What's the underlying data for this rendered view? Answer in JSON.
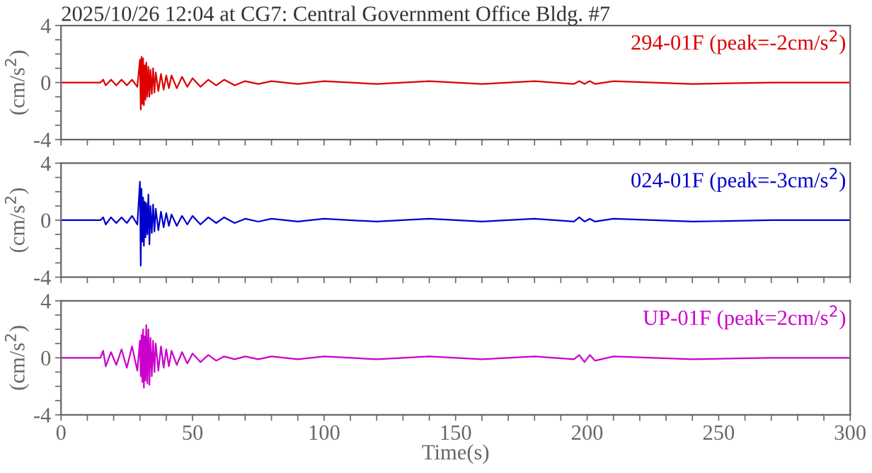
{
  "chart_data": [
    {
      "type": "line",
      "title": "2025/10/26 12:04 at CG7: Central Government Office Bldg. #7",
      "ylabel": "(cm/s$^{2}$)",
      "tick_labels": "y",
      "xlim": [
        0,
        300
      ],
      "ylim": [
        -4,
        4
      ],
      "xticks": [
        0,
        {
          "value": 10,
          "label": null
        },
        {
          "value": 20,
          "label": null
        },
        {
          "value": 30,
          "label": null
        },
        {
          "value": 40,
          "label": null
        },
        50,
        {
          "value": 60,
          "label": null
        },
        {
          "value": 70,
          "label": null
        },
        {
          "value": 80,
          "label": null
        },
        {
          "value": 90,
          "label": null
        },
        100,
        {
          "value": 110,
          "label": null
        },
        {
          "value": 120,
          "label": null
        },
        {
          "value": 130,
          "label": null
        },
        {
          "value": 140,
          "label": null
        },
        150,
        {
          "value": 160,
          "label": null
        },
        {
          "value": 170,
          "label": null
        },
        {
          "value": 180,
          "label": null
        },
        {
          "value": 190,
          "label": null
        },
        200,
        {
          "value": 210,
          "label": null
        },
        {
          "value": 220,
          "label": null
        },
        {
          "value": 230,
          "label": null
        },
        {
          "value": 240,
          "label": null
        },
        250,
        {
          "value": 260,
          "label": null
        },
        {
          "value": 270,
          "label": null
        },
        {
          "value": 280,
          "label": null
        },
        {
          "value": 290,
          "label": null
        },
        300
      ],
      "yticks": [
        -4,
        {
          "value": -3,
          "label": null
        },
        {
          "value": -2,
          "label": null
        },
        {
          "value": -1,
          "label": null
        },
        0,
        {
          "value": 1,
          "label": null
        },
        {
          "value": 2,
          "label": null
        },
        {
          "value": 3,
          "label": null
        },
        4
      ],
      "x": [
        0,
        15,
        16,
        17,
        19,
        21,
        23,
        25,
        27,
        29,
        30,
        30.3,
        30.6,
        30.9,
        31.2,
        31.5,
        31.8,
        32.1,
        32.4,
        32.8,
        33.2,
        33.6,
        34,
        34.5,
        35,
        35.5,
        36,
        37,
        38,
        39,
        40,
        41,
        42,
        44,
        46,
        48,
        50,
        53,
        56,
        59,
        62,
        66,
        70,
        75,
        80,
        90,
        100,
        120,
        140,
        160,
        180,
        195,
        197,
        199,
        201,
        203,
        210,
        240,
        270,
        300
      ],
      "series": [
        {
          "name": "294-01F (peak=-2cm/s$^{2}$)",
          "color": "#dd0000",
          "values": [
            0,
            0,
            0.2,
            -0.2,
            0.2,
            -0.2,
            0.2,
            -0.2,
            0.2,
            -0.3,
            1.6,
            -1.9,
            1.8,
            -1.5,
            1.7,
            -1.6,
            1.2,
            -1.2,
            1.4,
            -1.0,
            1.1,
            -1.0,
            0.9,
            -0.8,
            1.0,
            -0.7,
            0.7,
            -0.6,
            0.6,
            -0.5,
            0.5,
            -0.4,
            0.5,
            -0.4,
            0.4,
            -0.3,
            0.3,
            -0.3,
            0.2,
            -0.2,
            0.2,
            -0.2,
            0.1,
            -0.1,
            0.1,
            -0.1,
            0.1,
            -0.1,
            0.1,
            -0.1,
            0.1,
            -0.1,
            0.1,
            -0.1,
            0.1,
            -0.1,
            0.1,
            -0.1,
            0,
            0
          ]
        }
      ]
    },
    {
      "type": "line",
      "ylabel": "(cm/s$^{2}$)",
      "tick_labels": "y",
      "xlim": [
        0,
        300
      ],
      "ylim": [
        -4,
        4
      ],
      "xticks": [
        0,
        {
          "value": 10,
          "label": null
        },
        {
          "value": 20,
          "label": null
        },
        {
          "value": 30,
          "label": null
        },
        {
          "value": 40,
          "label": null
        },
        50,
        {
          "value": 60,
          "label": null
        },
        {
          "value": 70,
          "label": null
        },
        {
          "value": 80,
          "label": null
        },
        {
          "value": 90,
          "label": null
        },
        100,
        {
          "value": 110,
          "label": null
        },
        {
          "value": 120,
          "label": null
        },
        {
          "value": 130,
          "label": null
        },
        {
          "value": 140,
          "label": null
        },
        150,
        {
          "value": 160,
          "label": null
        },
        {
          "value": 170,
          "label": null
        },
        {
          "value": 180,
          "label": null
        },
        {
          "value": 190,
          "label": null
        },
        200,
        {
          "value": 210,
          "label": null
        },
        {
          "value": 220,
          "label": null
        },
        {
          "value": 230,
          "label": null
        },
        {
          "value": 240,
          "label": null
        },
        250,
        {
          "value": 260,
          "label": null
        },
        {
          "value": 270,
          "label": null
        },
        {
          "value": 280,
          "label": null
        },
        {
          "value": 290,
          "label": null
        },
        300
      ],
      "yticks": [
        -4,
        {
          "value": -3,
          "label": null
        },
        {
          "value": -2,
          "label": null
        },
        {
          "value": -1,
          "label": null
        },
        0,
        {
          "value": 1,
          "label": null
        },
        {
          "value": 2,
          "label": null
        },
        {
          "value": 3,
          "label": null
        },
        4
      ],
      "x": [
        0,
        15,
        16,
        17,
        19,
        21,
        23,
        25,
        27,
        29,
        30,
        30.3,
        30.6,
        30.9,
        31.2,
        31.5,
        31.8,
        32.1,
        32.4,
        32.8,
        33.2,
        33.6,
        34,
        34.5,
        35,
        35.5,
        36,
        37,
        38,
        39,
        40,
        41,
        42,
        44,
        46,
        48,
        50,
        53,
        56,
        59,
        62,
        66,
        70,
        75,
        80,
        90,
        100,
        120,
        140,
        160,
        180,
        195,
        197,
        199,
        201,
        203,
        210,
        240,
        270,
        300
      ],
      "series": [
        {
          "name": "024-01F (peak=-3cm/s$^{2}$)",
          "color": "#0000cc",
          "values": [
            0,
            0,
            0.2,
            -0.3,
            0.2,
            -0.2,
            0.2,
            -0.2,
            0.3,
            -0.3,
            2.7,
            -3.2,
            2.2,
            -1.5,
            1.6,
            -1.8,
            1.3,
            -1.2,
            1.2,
            -1.0,
            1.8,
            -1.7,
            1.0,
            -0.9,
            1.1,
            -0.8,
            0.8,
            -0.7,
            0.6,
            -0.5,
            0.5,
            -0.4,
            0.4,
            -0.4,
            0.3,
            -0.3,
            0.3,
            -0.3,
            0.2,
            -0.2,
            0.2,
            -0.2,
            0.1,
            -0.1,
            0.1,
            -0.1,
            0.1,
            -0.1,
            0.1,
            -0.1,
            0.1,
            -0.1,
            0.2,
            -0.1,
            0.1,
            -0.1,
            0.1,
            -0.1,
            0,
            0
          ]
        }
      ]
    },
    {
      "type": "line",
      "xlabel": "Time(s)",
      "ylabel": "(cm/s$^{2}$)",
      "xlim": [
        0,
        300
      ],
      "ylim": [
        -4,
        4
      ],
      "xticks": [
        0,
        {
          "value": 10,
          "label": null
        },
        {
          "value": 20,
          "label": null
        },
        {
          "value": 30,
          "label": null
        },
        {
          "value": 40,
          "label": null
        },
        50,
        {
          "value": 60,
          "label": null
        },
        {
          "value": 70,
          "label": null
        },
        {
          "value": 80,
          "label": null
        },
        {
          "value": 90,
          "label": null
        },
        100,
        {
          "value": 110,
          "label": null
        },
        {
          "value": 120,
          "label": null
        },
        {
          "value": 130,
          "label": null
        },
        {
          "value": 140,
          "label": null
        },
        150,
        {
          "value": 160,
          "label": null
        },
        {
          "value": 170,
          "label": null
        },
        {
          "value": 180,
          "label": null
        },
        {
          "value": 190,
          "label": null
        },
        200,
        {
          "value": 210,
          "label": null
        },
        {
          "value": 220,
          "label": null
        },
        {
          "value": 230,
          "label": null
        },
        {
          "value": 240,
          "label": null
        },
        250,
        {
          "value": 260,
          "label": null
        },
        {
          "value": 270,
          "label": null
        },
        {
          "value": 280,
          "label": null
        },
        {
          "value": 290,
          "label": null
        },
        300
      ],
      "yticks": [
        -4,
        {
          "value": -3,
          "label": null
        },
        {
          "value": -2,
          "label": null
        },
        {
          "value": -1,
          "label": null
        },
        0,
        {
          "value": 1,
          "label": null
        },
        {
          "value": 2,
          "label": null
        },
        {
          "value": 3,
          "label": null
        },
        4
      ],
      "x": [
        0,
        15,
        16,
        17,
        19,
        21,
        23,
        25,
        27,
        29,
        30,
        30.3,
        30.6,
        30.9,
        31.2,
        31.5,
        31.8,
        32.1,
        32.4,
        32.8,
        33.2,
        33.6,
        34,
        34.5,
        35,
        35.5,
        36,
        37,
        38,
        39,
        40,
        41,
        42,
        44,
        46,
        48,
        50,
        53,
        56,
        59,
        62,
        66,
        70,
        75,
        80,
        90,
        100,
        120,
        140,
        160,
        180,
        195,
        197,
        199,
        201,
        203,
        210,
        240,
        270,
        300
      ],
      "series": [
        {
          "name": "UP-01F (peak=2cm/s$^{2}$)",
          "color": "#cc00cc",
          "values": [
            0,
            0,
            0.5,
            -0.6,
            0.4,
            -0.5,
            0.6,
            -0.7,
            0.8,
            -0.9,
            1.2,
            -1.3,
            1.6,
            -1.7,
            2.0,
            -2.1,
            1.5,
            -1.6,
            2.3,
            -1.8,
            2.0,
            -1.9,
            1.4,
            -1.3,
            1.2,
            -1.0,
            1.0,
            -0.9,
            0.8,
            -0.7,
            0.6,
            -0.6,
            0.5,
            -0.5,
            0.4,
            -0.4,
            0.3,
            -0.3,
            0.2,
            -0.2,
            0.1,
            -0.1,
            0.1,
            -0.1,
            0.1,
            -0.1,
            0.1,
            -0.1,
            0.1,
            -0.1,
            0.1,
            -0.1,
            0.2,
            -0.3,
            0.2,
            -0.2,
            0.1,
            -0.1,
            0,
            0
          ]
        }
      ]
    }
  ]
}
